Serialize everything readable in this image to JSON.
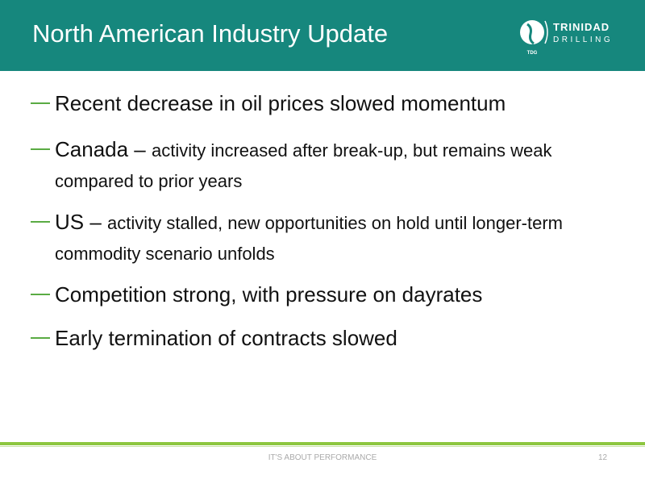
{
  "header": {
    "title": "North American Industry Update",
    "logo": {
      "name_line1": "TRINIDAD",
      "name_line2": "DRILLING",
      "mark": "TDG"
    }
  },
  "bullets": [
    {
      "text": "Recent decrease in oil prices slowed momentum"
    },
    {
      "lead": "Canada –",
      "text": "activity increased after break-up, but remains weak compared to prior years"
    },
    {
      "lead": "US –",
      "text": "activity stalled, new opportunities on hold until longer-term commodity scenario unfolds"
    },
    {
      "text": "Competition strong, with pressure on dayrates"
    },
    {
      "text": "Early termination of contracts slowed"
    }
  ],
  "footer": {
    "tagline": "IT'S ABOUT PERFORMANCE",
    "page_number": "12"
  }
}
